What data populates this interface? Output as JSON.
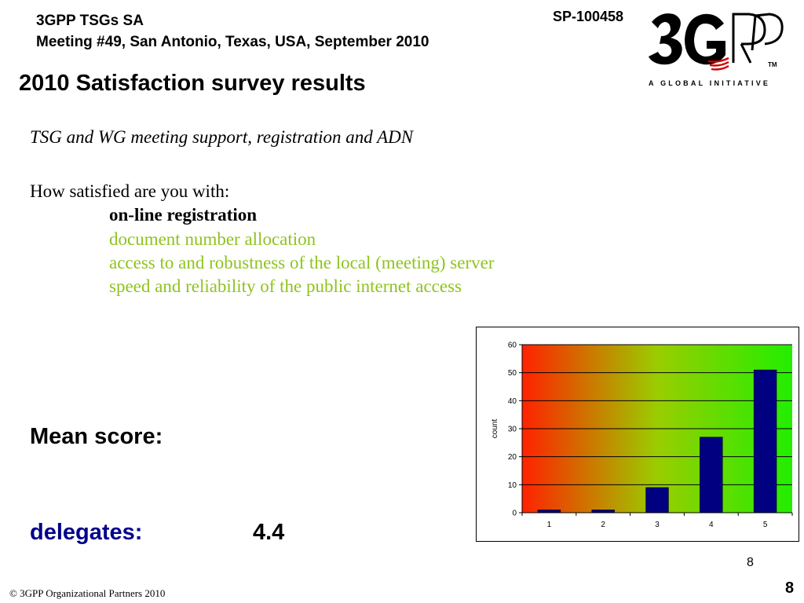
{
  "header": {
    "line1": "3GPP TSGs SA",
    "line2": "Meeting #49, San Antonio, Texas, USA, September 2010",
    "doc_id": "SP-100458"
  },
  "logo": {
    "name": "3gpp-logo",
    "tagline": "A GLOBAL INITIATIVE",
    "trademark": "TM"
  },
  "title": "2010 Satisfaction survey results",
  "subtitle": "TSG and WG meeting support, registration and ADN",
  "question": {
    "prompt": "How satisfied are you with:",
    "items": [
      "on-line registration",
      "document number allocation",
      "access to and robustness of the local (meeting) server",
      "speed and reliability of the public internet access"
    ]
  },
  "mean": {
    "label": "Mean score:",
    "group_label": "delegates:",
    "value": "4.4"
  },
  "chart_data": {
    "type": "bar",
    "categories": [
      "1",
      "2",
      "3",
      "4",
      "5"
    ],
    "values": [
      1,
      1,
      9,
      27,
      51
    ],
    "title": "",
    "xlabel": "",
    "ylabel": "count",
    "ylim": [
      0,
      60
    ],
    "yticks": [
      0,
      10,
      20,
      30,
      40,
      50,
      60
    ],
    "grid": true,
    "bar_color": "#000080",
    "background_gradient": [
      "#ff2200",
      "#9acd00",
      "#22ee00"
    ]
  },
  "page_number_small": "8",
  "footer": {
    "copyright": "© 3GPP Organizational Partners 2010",
    "page_number": "8"
  }
}
